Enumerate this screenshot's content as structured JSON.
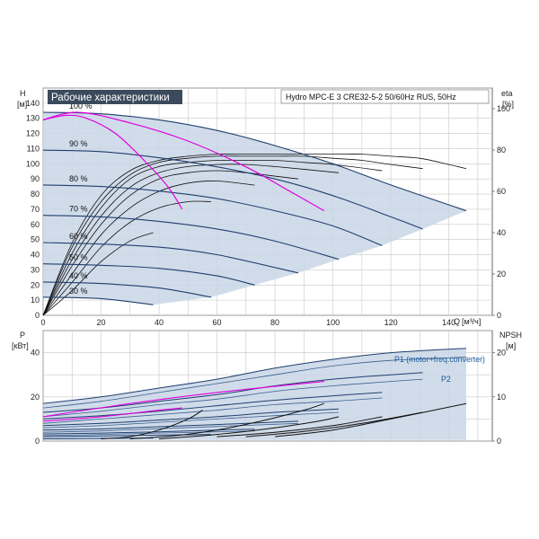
{
  "chart_data": [
    {
      "type": "line",
      "title": "Рабочие характеристики",
      "subtitle": "Hydro MPC-E 3 CRE32-5-2 50/60Hz RUS, 50Hz",
      "ylabel": "H",
      "yunit": "[м]",
      "xlabel": "Q",
      "xunit": "[м³/ч]",
      "y2label": "eta",
      "y2unit": "[%]",
      "xlim": [
        0,
        155
      ],
      "ylim": [
        0,
        150
      ],
      "y2lim": [
        0,
        110
      ],
      "xticks": [
        "0",
        "20",
        "40",
        "60",
        "80",
        "100",
        "120",
        "140"
      ],
      "yticks": [
        "0",
        "10",
        "20",
        "30",
        "40",
        "50",
        "60",
        "70",
        "80",
        "90",
        "100",
        "110",
        "120",
        "130",
        "140"
      ],
      "y2ticks": [
        "0",
        "20",
        "40",
        "60",
        "80",
        "100"
      ],
      "grid": true,
      "speed_labels": [
        "100 %",
        "90 %",
        "80 %",
        "70 %",
        "60 %",
        "50 %",
        "40 %",
        "30 %"
      ],
      "series": [
        {
          "label": "100 %",
          "color": "#1f3f6e",
          "x": [
            0,
            20,
            40,
            60,
            80,
            100,
            120,
            146
          ],
          "y": [
            134,
            133,
            129,
            122,
            112,
            100,
            86,
            69
          ]
        },
        {
          "label": "90 %",
          "color": "#1f3f6e",
          "x": [
            0,
            20,
            40,
            60,
            80,
            100,
            120,
            131
          ],
          "y": [
            109,
            108,
            104,
            98,
            90,
            79,
            65,
            57
          ]
        },
        {
          "label": "80 %",
          "color": "#1f3f6e",
          "x": [
            0,
            20,
            40,
            60,
            80,
            100,
            117
          ],
          "y": [
            86,
            85,
            82,
            77,
            69,
            59,
            46
          ]
        },
        {
          "label": "70 %",
          "color": "#1f3f6e",
          "x": [
            0,
            20,
            40,
            60,
            80,
            102
          ],
          "y": [
            66,
            65,
            62,
            57,
            49,
            37
          ]
        },
        {
          "label": "60 %",
          "color": "#1f3f6e",
          "x": [
            0,
            20,
            40,
            60,
            88
          ],
          "y": [
            48,
            47,
            45,
            40,
            28
          ]
        },
        {
          "label": "50 %",
          "color": "#1f3f6e",
          "x": [
            0,
            20,
            40,
            60,
            73
          ],
          "y": [
            34,
            33,
            31,
            26,
            20
          ]
        },
        {
          "label": "40 %",
          "color": "#1f3f6e",
          "x": [
            0,
            20,
            40,
            58
          ],
          "y": [
            22,
            21,
            18,
            12
          ]
        },
        {
          "label": "30 %",
          "color": "#1f3f6e",
          "x": [
            0,
            20,
            38
          ],
          "y": [
            12,
            11,
            7
          ]
        }
      ],
      "limit_curves": [
        {
          "color": "#e000e0",
          "x": [
            0,
            8,
            15,
            25,
            35,
            43,
            48
          ],
          "y": [
            129,
            132,
            130,
            120,
            102,
            85,
            70
          ]
        },
        {
          "color": "#e000e0",
          "x": [
            0,
            12,
            30,
            50,
            70,
            85,
            97
          ],
          "y": [
            129,
            134,
            127,
            115,
            98,
            82,
            69
          ]
        }
      ],
      "eta_series": [
        {
          "x": [
            0,
            10,
            20,
            30,
            40,
            50,
            60,
            70,
            80,
            90,
            100,
            110,
            120,
            130,
            140,
            146
          ],
          "y": [
            0,
            35,
            58,
            70,
            75,
            77,
            78,
            78,
            78,
            78,
            78,
            78,
            77,
            76,
            73,
            71
          ]
        },
        {
          "x": [
            0,
            10,
            20,
            30,
            40,
            50,
            60,
            70,
            80,
            90,
            100,
            110,
            120,
            131
          ],
          "y": [
            0,
            33,
            55,
            68,
            74,
            76,
            77,
            77,
            77,
            77,
            76,
            75,
            73,
            71
          ]
        },
        {
          "x": [
            0,
            10,
            20,
            30,
            40,
            50,
            60,
            70,
            80,
            90,
            100,
            117
          ],
          "y": [
            0,
            30,
            52,
            66,
            72,
            74,
            75,
            75,
            75,
            74,
            73,
            70
          ]
        },
        {
          "x": [
            0,
            10,
            20,
            30,
            40,
            50,
            60,
            70,
            80,
            102
          ],
          "y": [
            0,
            27,
            48,
            62,
            69,
            72,
            73,
            73,
            72,
            69
          ]
        },
        {
          "x": [
            0,
            10,
            20,
            30,
            40,
            50,
            60,
            70,
            88
          ],
          "y": [
            0,
            24,
            44,
            58,
            66,
            69,
            70,
            69,
            66
          ]
        },
        {
          "x": [
            0,
            10,
            20,
            30,
            40,
            50,
            60,
            73
          ],
          "y": [
            0,
            20,
            39,
            52,
            60,
            64,
            65,
            63
          ]
        },
        {
          "x": [
            0,
            10,
            20,
            30,
            40,
            50,
            58
          ],
          "y": [
            0,
            16,
            33,
            45,
            52,
            55,
            55
          ]
        },
        {
          "x": [
            0,
            10,
            20,
            30,
            38
          ],
          "y": [
            0,
            12,
            26,
            36,
            40
          ]
        }
      ]
    },
    {
      "type": "line",
      "ylabel": "P",
      "yunit": "[кВт]",
      "y2label": "NPSH",
      "y2unit": "[м]",
      "xlim": [
        0,
        155
      ],
      "ylim": [
        0,
        50
      ],
      "y2lim": [
        0,
        25
      ],
      "yticks": [
        "0",
        "20",
        "40"
      ],
      "y2ticks": [
        "0",
        "10",
        "20"
      ],
      "grid": true,
      "annotations": [
        "P1 (motor+freq.converter)",
        "P2"
      ],
      "p1_series": [
        {
          "x": [
            0,
            20,
            40,
            60,
            80,
            100,
            120,
            146
          ],
          "y": [
            17,
            20,
            24,
            28,
            33,
            37,
            40,
            42
          ]
        },
        {
          "x": [
            0,
            20,
            40,
            60,
            80,
            100,
            120,
            131
          ],
          "y": [
            13,
            15,
            18,
            21,
            25,
            28,
            30,
            31
          ]
        },
        {
          "x": [
            0,
            20,
            40,
            60,
            80,
            100,
            117
          ],
          "y": [
            10,
            11.5,
            13.5,
            16,
            18.5,
            20.5,
            22
          ]
        },
        {
          "x": [
            0,
            20,
            40,
            60,
            80,
            102
          ],
          "y": [
            7,
            8,
            9.5,
            11,
            13,
            14.5
          ]
        },
        {
          "x": [
            0,
            20,
            40,
            60,
            88
          ],
          "y": [
            5,
            5.5,
            6.5,
            7.5,
            9
          ]
        },
        {
          "x": [
            0,
            20,
            40,
            60,
            73
          ],
          "y": [
            3.2,
            3.6,
            4.2,
            5,
            5.4
          ]
        },
        {
          "x": [
            0,
            20,
            40,
            58
          ],
          "y": [
            2,
            2.3,
            2.7,
            3
          ]
        },
        {
          "x": [
            0,
            20,
            38
          ],
          "y": [
            1,
            1.2,
            1.4
          ]
        }
      ],
      "p2_series": [
        {
          "x": [
            0,
            20,
            40,
            60,
            80,
            100,
            120,
            146
          ],
          "y": [
            15,
            18,
            22,
            26,
            30,
            34,
            36.5,
            38
          ]
        },
        {
          "x": [
            0,
            20,
            40,
            60,
            80,
            100,
            120,
            131
          ],
          "y": [
            11,
            13.5,
            16.5,
            19,
            22.5,
            25,
            27,
            28
          ]
        },
        {
          "x": [
            0,
            20,
            40,
            60,
            80,
            100,
            117
          ],
          "y": [
            8,
            10,
            12,
            14,
            16.5,
            18,
            19.5
          ]
        },
        {
          "x": [
            0,
            20,
            40,
            60,
            80,
            102
          ],
          "y": [
            6,
            7,
            8.5,
            10,
            11.5,
            13
          ]
        },
        {
          "x": [
            0,
            20,
            40,
            60,
            88
          ],
          "y": [
            4,
            4.6,
            5.6,
            6.6,
            8
          ]
        },
        {
          "x": [
            0,
            20,
            40,
            60,
            73
          ],
          "y": [
            2.5,
            3,
            3.6,
            4.2,
            4.6
          ]
        }
      ],
      "p_limit": [
        {
          "color": "#e000e0",
          "x": [
            0,
            20,
            40,
            48
          ],
          "y": [
            9,
            11,
            14,
            15
          ]
        },
        {
          "color": "#e000e0",
          "x": [
            0,
            30,
            60,
            97
          ],
          "y": [
            11,
            17,
            22,
            27
          ]
        }
      ],
      "npsh_series": [
        {
          "x": [
            20,
            30,
            40,
            50,
            55
          ],
          "y": [
            0.5,
            1,
            2.5,
            5,
            7
          ]
        },
        {
          "x": [
            30,
            45,
            60,
            75,
            90,
            97
          ],
          "y": [
            0.5,
            1.2,
            2.5,
            4.5,
            7,
            8.5
          ]
        },
        {
          "x": [
            40,
            60,
            80,
            95,
            102
          ],
          "y": [
            0.5,
            1.5,
            3,
            4.5,
            5.5
          ]
        },
        {
          "x": [
            60,
            80,
            100,
            117
          ],
          "y": [
            1,
            2,
            3.5,
            5.5
          ]
        },
        {
          "x": [
            70,
            90,
            110,
            131
          ],
          "y": [
            1,
            2.2,
            4,
            6.5
          ]
        },
        {
          "x": [
            80,
            100,
            120,
            146
          ],
          "y": [
            1,
            2.5,
            5,
            8.5
          ]
        }
      ]
    }
  ]
}
